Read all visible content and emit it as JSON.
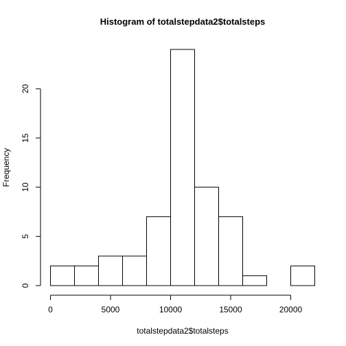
{
  "chart_data": {
    "type": "bar",
    "title": "Histogram of totalstepdata2$totalsteps",
    "xlabel": "totalstepdata2$totalsteps",
    "ylabel": "Frequency",
    "bins": [
      {
        "start": 0,
        "end": 2000,
        "count": 2
      },
      {
        "start": 2000,
        "end": 4000,
        "count": 2
      },
      {
        "start": 4000,
        "end": 6000,
        "count": 3
      },
      {
        "start": 6000,
        "end": 8000,
        "count": 3
      },
      {
        "start": 8000,
        "end": 10000,
        "count": 7
      },
      {
        "start": 10000,
        "end": 12000,
        "count": 24
      },
      {
        "start": 12000,
        "end": 14000,
        "count": 10
      },
      {
        "start": 14000,
        "end": 16000,
        "count": 7
      },
      {
        "start": 16000,
        "end": 18000,
        "count": 1
      },
      {
        "start": 18000,
        "end": 20000,
        "count": 0
      },
      {
        "start": 20000,
        "end": 22000,
        "count": 2
      }
    ],
    "xticks": [
      0,
      5000,
      10000,
      15000,
      20000
    ],
    "yticks": [
      0,
      5,
      10,
      15,
      20
    ],
    "xlim": [
      0,
      22000
    ],
    "ylim": [
      0,
      24
    ],
    "grid": false
  }
}
